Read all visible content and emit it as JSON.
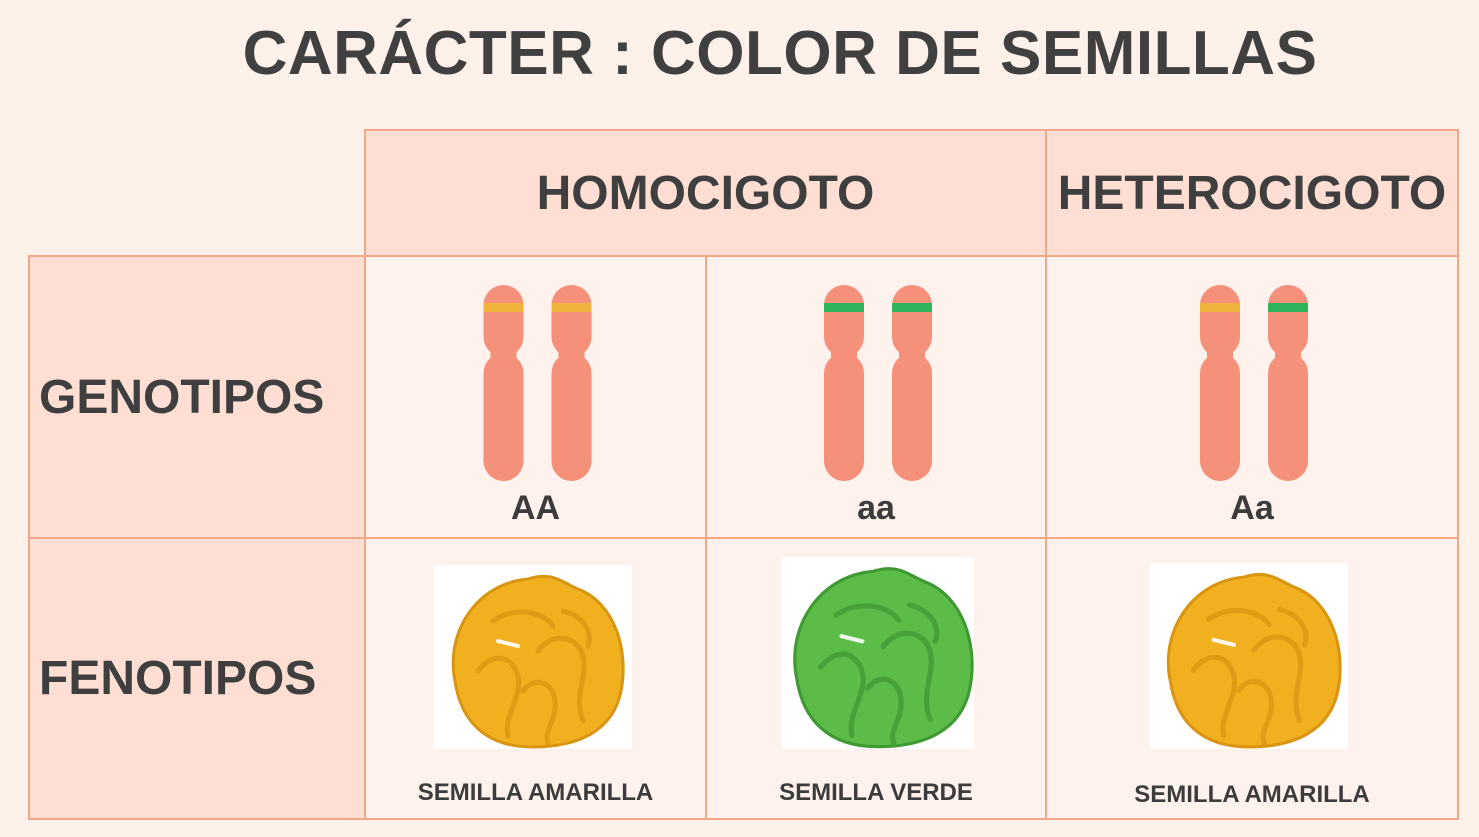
{
  "title": "CARÁCTER : COLOR DE SEMILLAS",
  "headers": {
    "homocigoto": "HOMOCIGOTO",
    "heterocigoto": "HETEROCIGOTO"
  },
  "rows": {
    "genotipos": "GENOTIPOS",
    "fenotipos": "FENOTIPOS"
  },
  "genotypes": [
    {
      "label": "AA",
      "bands": [
        "yellow",
        "yellow"
      ]
    },
    {
      "label": "aa",
      "bands": [
        "green",
        "green"
      ]
    },
    {
      "label": "Aa",
      "bands": [
        "yellow",
        "green"
      ]
    }
  ],
  "phenotypes": [
    {
      "label": "SEMILLA AMARILLA",
      "color": "yellow"
    },
    {
      "label": "SEMILLA VERDE",
      "color": "green"
    },
    {
      "label": "SEMILLA AMARILLA",
      "color": "yellow"
    }
  ],
  "colors": {
    "chromosome": "#f5907a",
    "band_yellow": "#f0b43c",
    "band_green": "#2db35a",
    "seed_yellow": "#f0b020",
    "seed_yellow_dark": "#d99412",
    "seed_green": "#5cbc48",
    "seed_green_dark": "#3f9a33",
    "border": "#efa88a",
    "header_bg": "#ffdfd3",
    "cell_bg": "#fff2ec"
  }
}
